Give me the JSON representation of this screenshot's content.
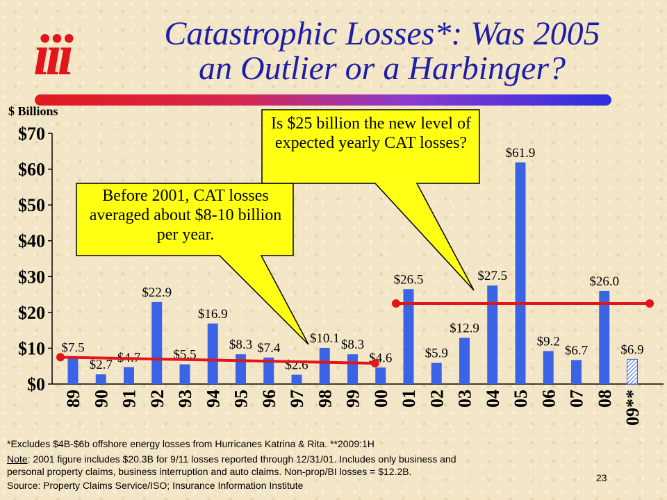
{
  "title_line1": "Catastrophic Losses*: Was 2005",
  "title_line2": "an Outlier or a Harbinger?",
  "logo_text": "iii",
  "y_units": "$ Billions",
  "colors": {
    "bar": "#3b63e6",
    "bar_estimate": "#9cc2ff",
    "trend": "#e3141a",
    "callout_fill": "#ffff14",
    "title": "#1d1ea8"
  },
  "callouts": {
    "pre2001": "Before 2001, CAT losses averaged about $8-10 billion per year.",
    "post2001": "Is $25 billion the new level of expected yearly CAT losses?"
  },
  "chart_data": {
    "type": "bar",
    "ylabel": "$ Billions",
    "ylim": [
      0,
      70
    ],
    "yticks": [
      "$0",
      "$10",
      "$20",
      "$30",
      "$40",
      "$50",
      "$60",
      "$70"
    ],
    "categories": [
      "89",
      "90",
      "91",
      "92",
      "93",
      "94",
      "95",
      "96",
      "97",
      "98",
      "99",
      "00",
      "01",
      "02",
      "03",
      "04",
      "05",
      "06",
      "07",
      "08",
      "09**"
    ],
    "values": [
      7.5,
      2.7,
      4.7,
      22.9,
      5.5,
      16.9,
      8.3,
      7.4,
      2.6,
      10.1,
      8.3,
      4.6,
      26.5,
      5.9,
      12.9,
      27.5,
      61.9,
      9.2,
      6.7,
      26.0,
      6.9
    ],
    "data_labels": [
      "$7.5",
      "$2.7",
      "$4.7",
      "$22.9",
      "$5.5",
      "$16.9",
      "$8.3",
      "$7.4",
      "$2.6",
      "$10.1",
      "$8.3",
      "$4.6",
      "$26.5",
      "$5.9",
      "$12.9",
      "$27.5",
      "$61.9",
      "$9.2",
      "$6.7",
      "$26.0",
      "$6.9"
    ],
    "estimate_index": 20,
    "trend_lines": [
      {
        "from": "89",
        "to": "00",
        "start_value": 7.5,
        "end_value": 5.8
      },
      {
        "from": "01",
        "to": "09**",
        "start_value": 22.5,
        "end_value": 22.5
      }
    ],
    "grid": false
  },
  "footnotes": {
    "line1": "*Excludes $4B-$6b offshore energy losses from Hurricanes Katrina & Rita. **2009:1H",
    "note_label": "Note",
    "line2": ": 2001 figure includes $20.3B for 9/11 losses reported through 12/31/01.  Includes only business and",
    "line3": "personal property claims, business interruption and auto claims.  Non-prop/BI losses = $12.2B.",
    "line4": "Source:  Property Claims Service/ISO; Insurance Information Institute"
  },
  "page_number": "23"
}
